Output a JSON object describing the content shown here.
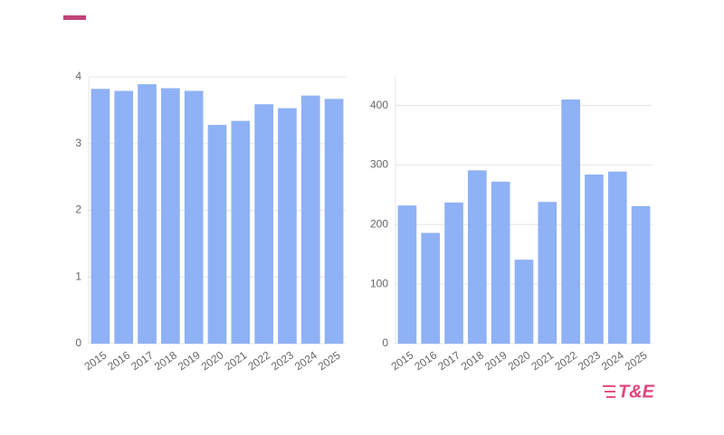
{
  "chart_data": [
    {
      "type": "bar",
      "categories": [
        "2015",
        "2016",
        "2017",
        "2018",
        "2019",
        "2020",
        "2021",
        "2022",
        "2023",
        "2024",
        "2025"
      ],
      "values": [
        3.82,
        3.79,
        3.89,
        3.83,
        3.79,
        3.28,
        3.34,
        3.59,
        3.53,
        3.72,
        3.67
      ],
      "color": "#8fb1f5",
      "ylim": [
        0,
        4
      ],
      "yticks": [
        0,
        1,
        2,
        3,
        4
      ],
      "grid": true
    },
    {
      "type": "bar",
      "categories": [
        "2015",
        "2016",
        "2017",
        "2018",
        "2019",
        "2020",
        "2021",
        "2022",
        "2023",
        "2024",
        "2025"
      ],
      "values": [
        232,
        186,
        237,
        291,
        272,
        141,
        238,
        410,
        284,
        289,
        231
      ],
      "color": "#8fb1f5",
      "ylim": [
        0,
        448
      ],
      "yticks": [
        0,
        100,
        200,
        300,
        400
      ],
      "grid": true
    }
  ],
  "logo": "T&E"
}
